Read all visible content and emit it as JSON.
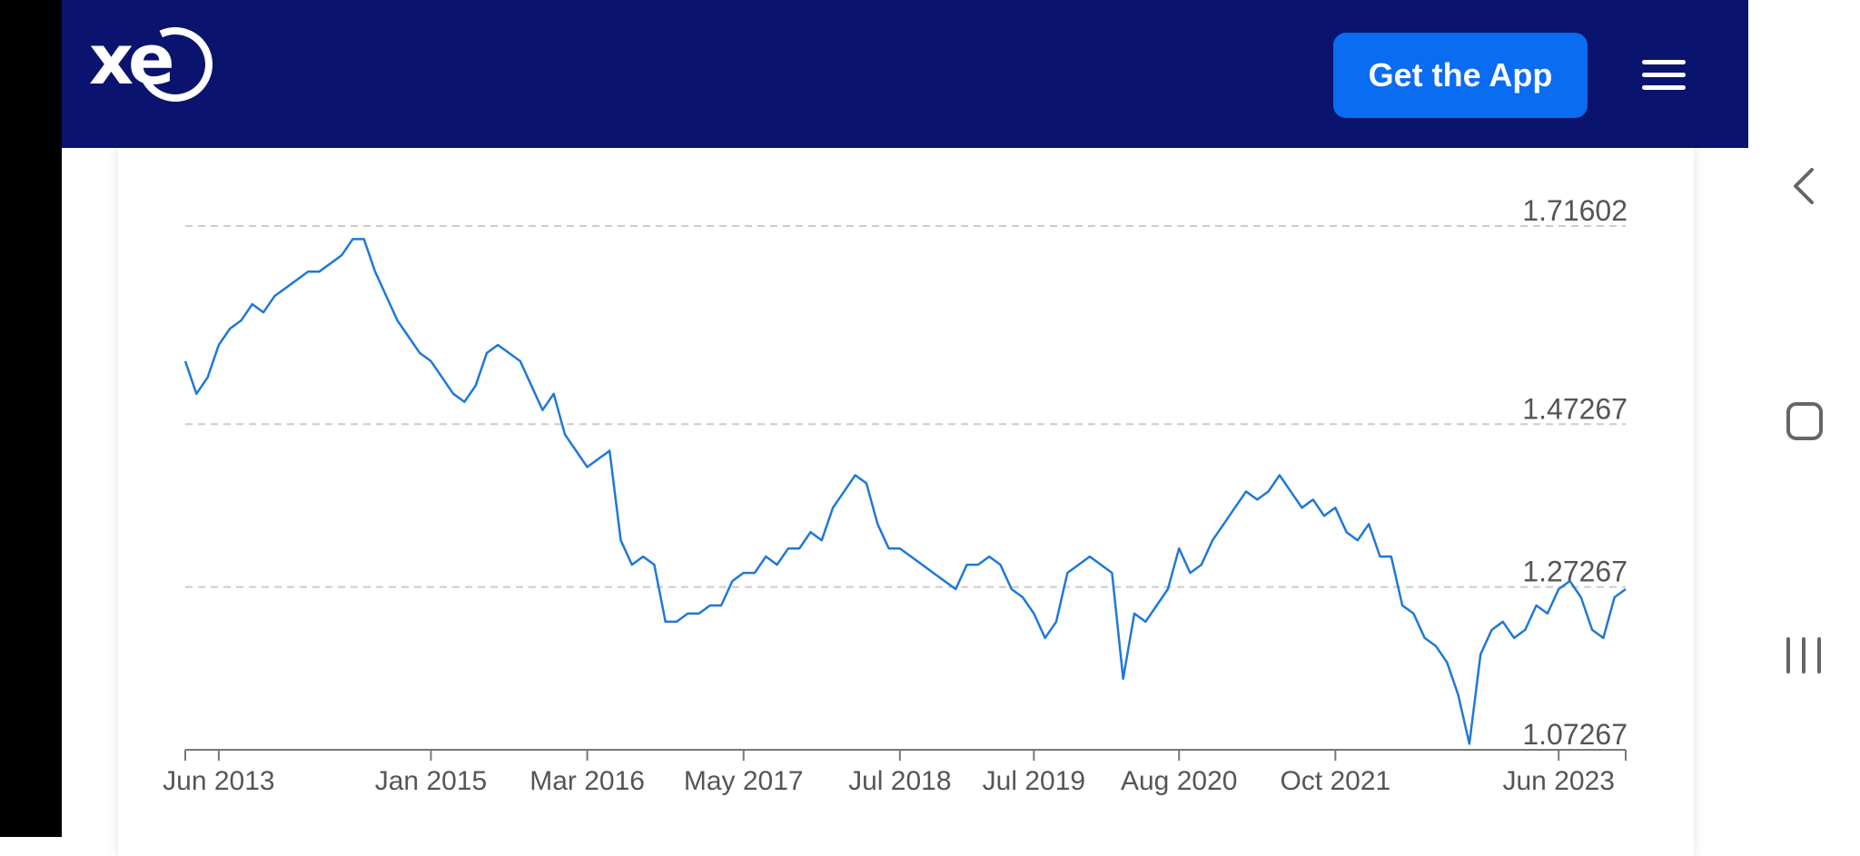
{
  "header": {
    "logo_text": "xe",
    "get_app_label": "Get the App",
    "menu_icon": "hamburger-menu-icon",
    "background_color": "#0a146e",
    "button_color": "#0a6cf0"
  },
  "system_nav": {
    "back_icon": "chevron-left-icon",
    "home_icon": "rounded-square-icon",
    "recents_icon": "three-bars-icon"
  },
  "chart_data": {
    "type": "line",
    "title": "",
    "xlabel": "",
    "ylabel": "",
    "line_color": "#1f78d8",
    "grid": "horizontal-dashed",
    "y_ticks": [
      "1.71602",
      "1.47267",
      "1.27267",
      "1.07267"
    ],
    "x_ticks": [
      "Jun 2013",
      "Jan 2015",
      "Mar 2016",
      "May 2017",
      "Jul 2018",
      "Jul 2019",
      "Aug 2020",
      "Oct 2021",
      "Jun 2023"
    ],
    "x_tick_dates": [
      "2013-06",
      "2015-01",
      "2016-03",
      "2017-05",
      "2018-07",
      "2019-07",
      "2020-08",
      "2021-10",
      "2023-06"
    ],
    "xlim": [
      "2013-03",
      "2023-12"
    ],
    "ylim": [
      1.07267,
      1.71602
    ],
    "series": [
      {
        "x": [
          "2013-03",
          "2013-04",
          "2013-05",
          "2013-06",
          "2013-07",
          "2013-08",
          "2013-09",
          "2013-10",
          "2013-11",
          "2013-12",
          "2014-01",
          "2014-02",
          "2014-03",
          "2014-04",
          "2014-05",
          "2014-06",
          "2014-07",
          "2014-08",
          "2014-09",
          "2014-10",
          "2014-11",
          "2014-12",
          "2015-01",
          "2015-02",
          "2015-03",
          "2015-04",
          "2015-05",
          "2015-06",
          "2015-07",
          "2015-08",
          "2015-09",
          "2015-10",
          "2015-11",
          "2015-12",
          "2016-01",
          "2016-02",
          "2016-03",
          "2016-04",
          "2016-05",
          "2016-06",
          "2016-07",
          "2016-08",
          "2016-09",
          "2016-10",
          "2016-11",
          "2016-12",
          "2017-01",
          "2017-02",
          "2017-03",
          "2017-04",
          "2017-05",
          "2017-06",
          "2017-07",
          "2017-08",
          "2017-09",
          "2017-10",
          "2017-11",
          "2017-12",
          "2018-01",
          "2018-02",
          "2018-03",
          "2018-04",
          "2018-05",
          "2018-06",
          "2018-07",
          "2018-08",
          "2018-09",
          "2018-10",
          "2018-11",
          "2018-12",
          "2019-01",
          "2019-02",
          "2019-03",
          "2019-04",
          "2019-05",
          "2019-06",
          "2019-07",
          "2019-08",
          "2019-09",
          "2019-10",
          "2019-11",
          "2019-12",
          "2020-01",
          "2020-02",
          "2020-03",
          "2020-04",
          "2020-05",
          "2020-06",
          "2020-07",
          "2020-08",
          "2020-09",
          "2020-10",
          "2020-11",
          "2020-12",
          "2021-01",
          "2021-02",
          "2021-03",
          "2021-04",
          "2021-05",
          "2021-06",
          "2021-07",
          "2021-08",
          "2021-09",
          "2021-10",
          "2021-11",
          "2021-12",
          "2022-01",
          "2022-02",
          "2022-03",
          "2022-04",
          "2022-05",
          "2022-06",
          "2022-07",
          "2022-08",
          "2022-09",
          "2022-10",
          "2022-11",
          "2022-12",
          "2023-01",
          "2023-02",
          "2023-03",
          "2023-04",
          "2023-05",
          "2023-06",
          "2023-07",
          "2023-08",
          "2023-09",
          "2023-10",
          "2023-11",
          "2023-12"
        ],
        "values": [
          1.55,
          1.51,
          1.53,
          1.57,
          1.59,
          1.6,
          1.62,
          1.61,
          1.63,
          1.64,
          1.65,
          1.66,
          1.66,
          1.67,
          1.68,
          1.7,
          1.7,
          1.66,
          1.63,
          1.6,
          1.58,
          1.56,
          1.55,
          1.53,
          1.51,
          1.5,
          1.52,
          1.56,
          1.57,
          1.56,
          1.55,
          1.52,
          1.49,
          1.51,
          1.46,
          1.44,
          1.42,
          1.43,
          1.44,
          1.33,
          1.3,
          1.31,
          1.3,
          1.23,
          1.23,
          1.24,
          1.24,
          1.25,
          1.25,
          1.28,
          1.29,
          1.29,
          1.31,
          1.3,
          1.32,
          1.32,
          1.34,
          1.33,
          1.37,
          1.39,
          1.41,
          1.4,
          1.35,
          1.32,
          1.32,
          1.31,
          1.3,
          1.29,
          1.28,
          1.27,
          1.3,
          1.3,
          1.31,
          1.3,
          1.27,
          1.26,
          1.24,
          1.21,
          1.23,
          1.29,
          1.3,
          1.31,
          1.3,
          1.29,
          1.16,
          1.24,
          1.23,
          1.25,
          1.27,
          1.32,
          1.29,
          1.3,
          1.33,
          1.35,
          1.37,
          1.39,
          1.38,
          1.39,
          1.41,
          1.39,
          1.37,
          1.38,
          1.36,
          1.37,
          1.34,
          1.33,
          1.35,
          1.31,
          1.31,
          1.25,
          1.24,
          1.21,
          1.2,
          1.18,
          1.14,
          1.08,
          1.19,
          1.22,
          1.23,
          1.21,
          1.22,
          1.25,
          1.24,
          1.27,
          1.28,
          1.26,
          1.22,
          1.21,
          1.26,
          1.27
        ]
      }
    ]
  }
}
